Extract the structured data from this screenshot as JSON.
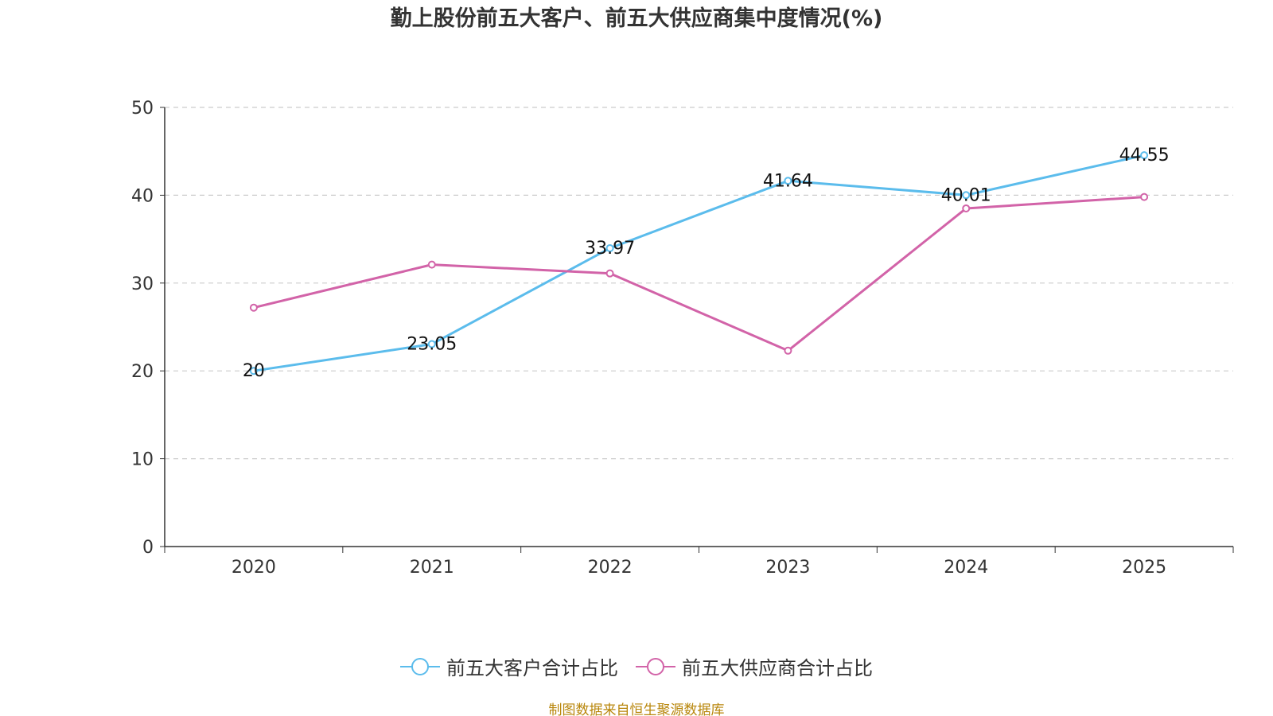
{
  "chart_data": {
    "type": "line",
    "title": "勤上股份前五大客户、前五大供应商集中度情况(%)",
    "categories": [
      "2020",
      "2021",
      "2022",
      "2023",
      "2024",
      "2025"
    ],
    "ylim": [
      0,
      50
    ],
    "yticks": [
      0,
      10,
      20,
      30,
      40,
      50
    ],
    "grid": true,
    "legend_position": "bottom",
    "xlabel": "",
    "ylabel": "",
    "series": [
      {
        "name": "前五大客户合计占比",
        "color": "#5bbcec",
        "values": [
          20,
          23.05,
          33.97,
          41.64,
          40.01,
          44.55
        ],
        "labels": [
          "20",
          "23.05",
          "33.97",
          "41.64",
          "40.01",
          "44.55"
        ],
        "show_labels": true
      },
      {
        "name": "前五大供应商合计占比",
        "color": "#d263a8",
        "values": [
          27.2,
          32.1,
          31.1,
          22.3,
          38.5,
          39.8
        ],
        "show_labels": false
      }
    ]
  },
  "source_text": "制图数据来自恒生聚源数据库"
}
